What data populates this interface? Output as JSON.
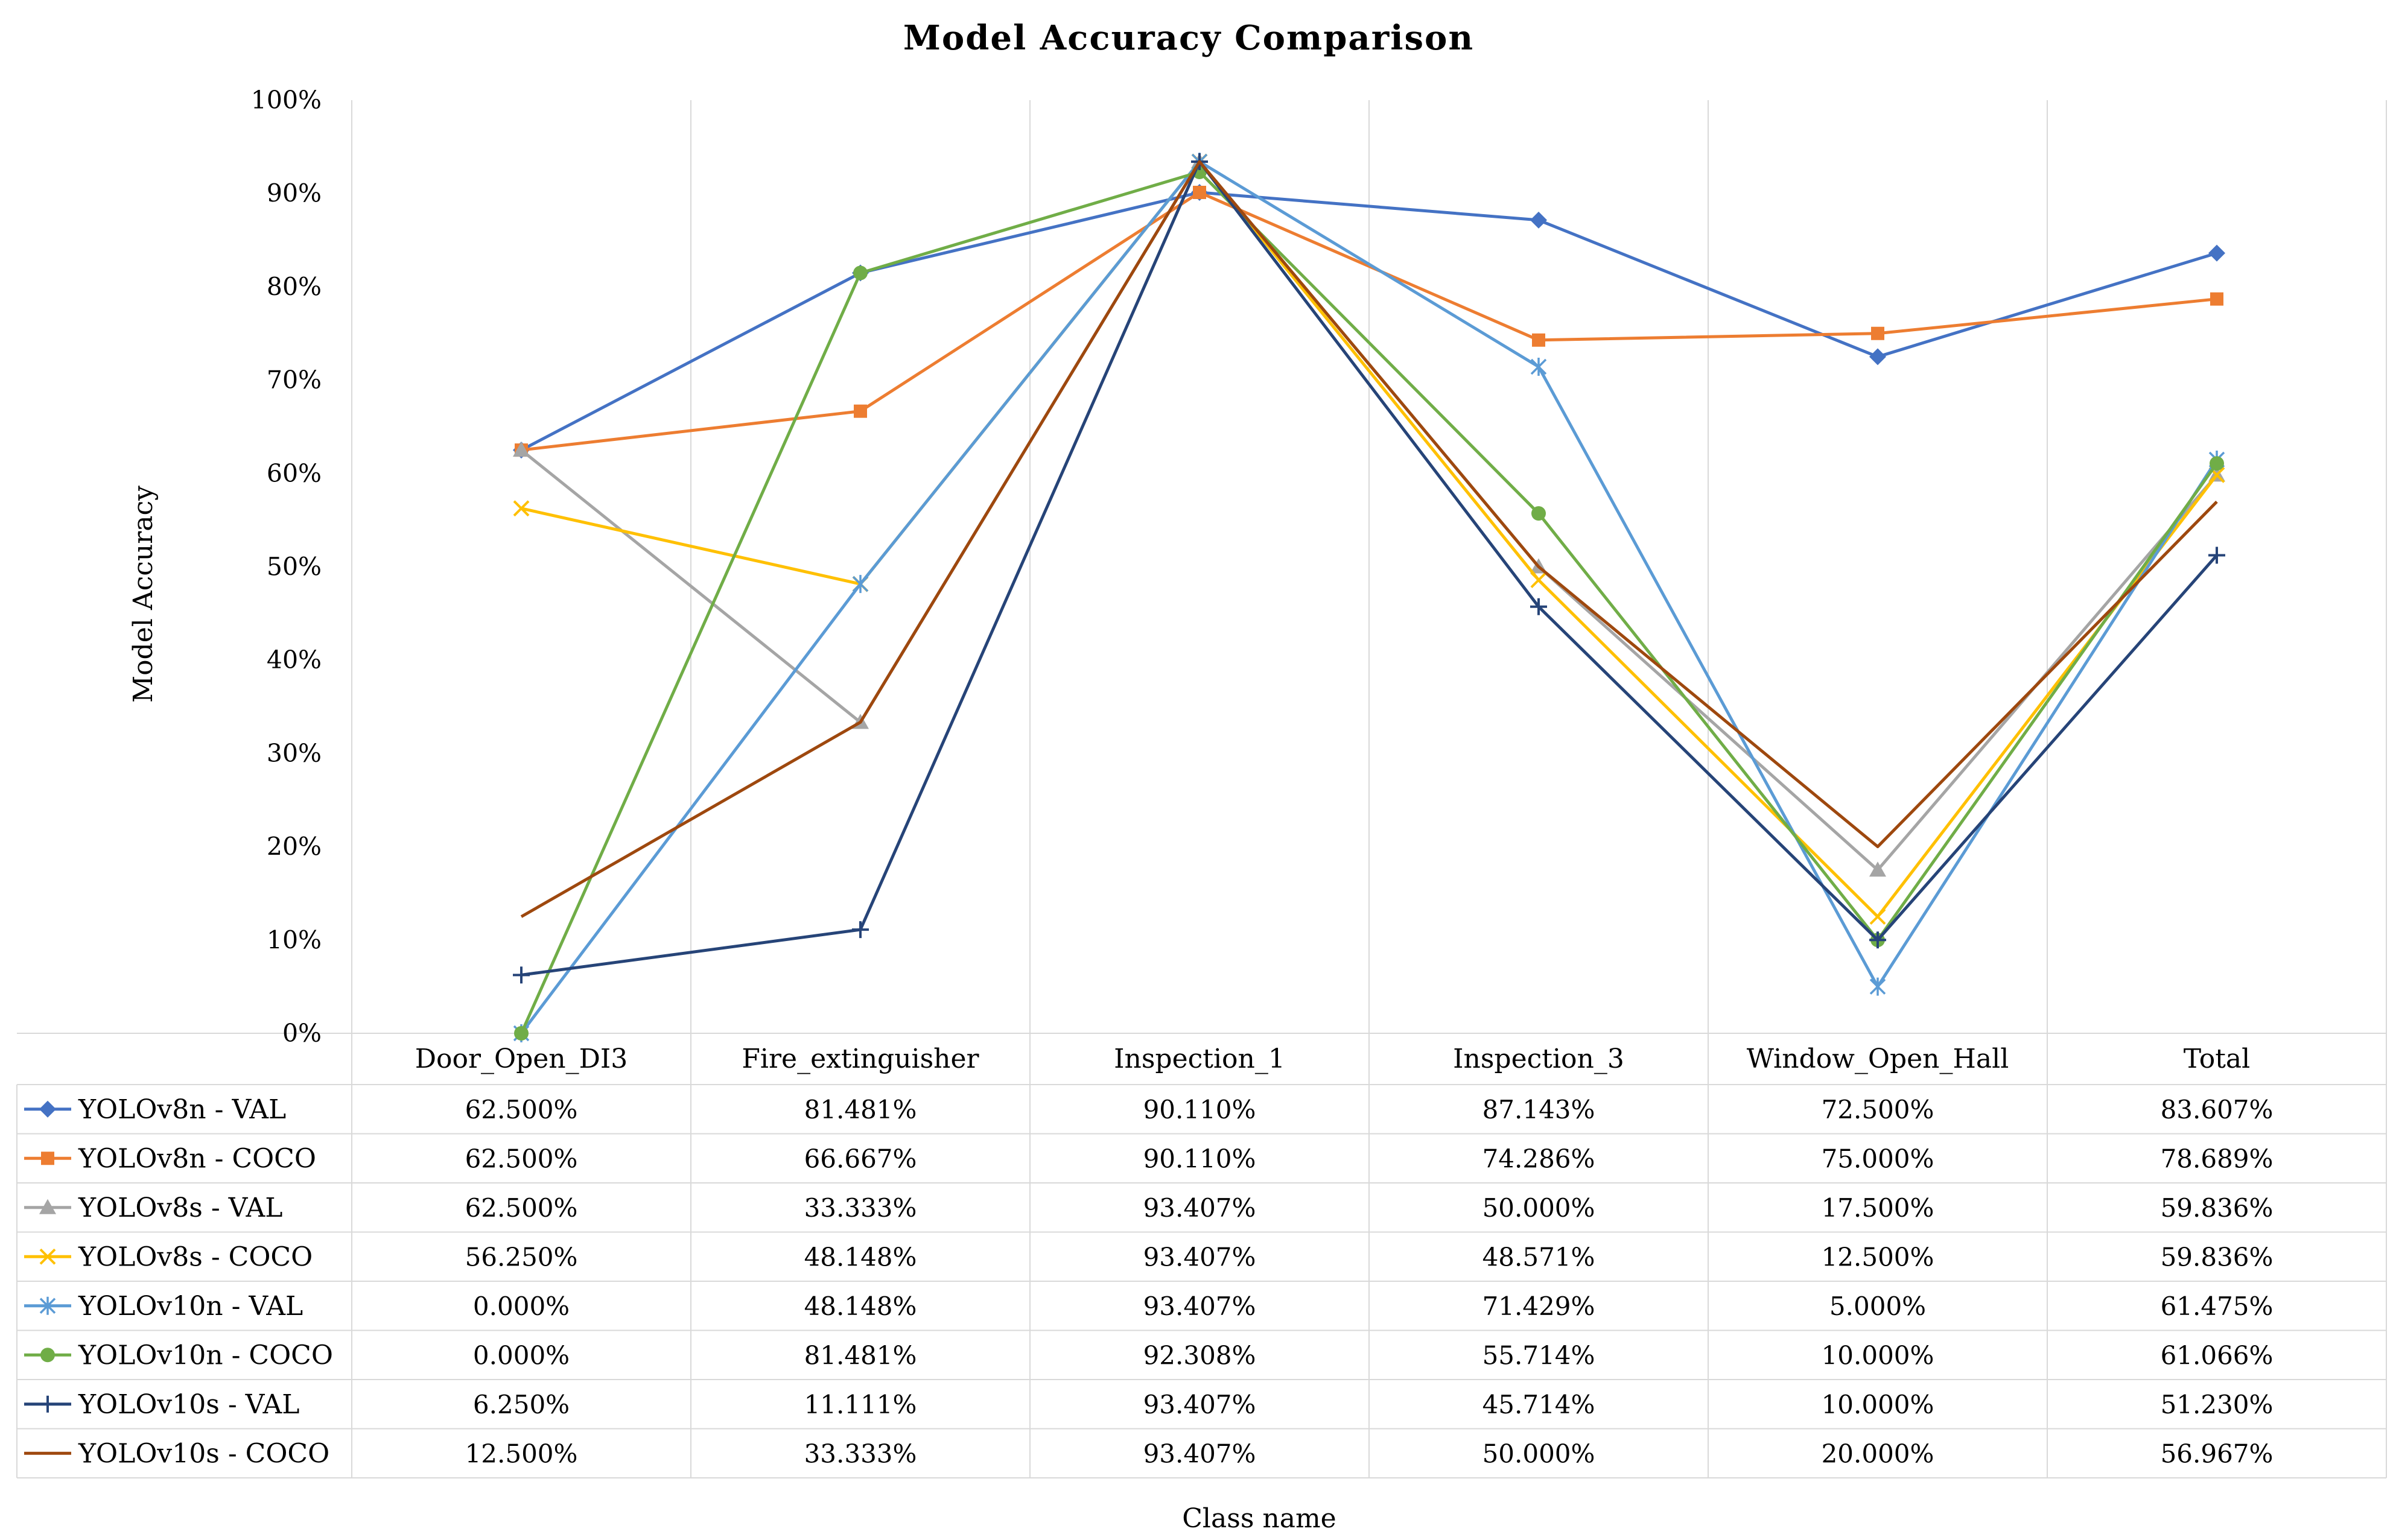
{
  "chart_data": {
    "type": "line",
    "title": "Model Accuracy Comparison",
    "xlabel": "Class name",
    "ylabel": "Model Accuracy",
    "ylim": [
      0,
      100
    ],
    "y_ticks": [
      "0%",
      "10%",
      "20%",
      "30%",
      "40%",
      "50%",
      "60%",
      "70%",
      "80%",
      "90%",
      "100%"
    ],
    "grid": "vertical",
    "legend": "data-table-below",
    "categories": [
      "Door_Open_DI3",
      "Fire_extinguisher",
      "Inspection_1",
      "Inspection_3",
      "Window_Open_Hall",
      "Total"
    ],
    "series": [
      {
        "name": "YOLOv8n - VAL",
        "color": "#4472C4",
        "marker": "diamond",
        "values": [
          62.5,
          81.481,
          90.11,
          87.143,
          72.5,
          83.607
        ],
        "labels": [
          "62.500%",
          "81.481%",
          "90.110%",
          "87.143%",
          "72.500%",
          "83.607%"
        ]
      },
      {
        "name": "YOLOv8n - COCO",
        "color": "#ED7D31",
        "marker": "square",
        "values": [
          62.5,
          66.667,
          90.11,
          74.286,
          75.0,
          78.689
        ],
        "labels": [
          "62.500%",
          "66.667%",
          "90.110%",
          "74.286%",
          "75.000%",
          "78.689%"
        ]
      },
      {
        "name": "YOLOv8s - VAL",
        "color": "#A5A5A5",
        "marker": "triangle",
        "values": [
          62.5,
          33.333,
          93.407,
          50.0,
          17.5,
          59.836
        ],
        "labels": [
          "62.500%",
          "33.333%",
          "93.407%",
          "50.000%",
          "17.500%",
          "59.836%"
        ]
      },
      {
        "name": "YOLOv8s - COCO",
        "color": "#FFC000",
        "marker": "x",
        "values": [
          56.25,
          48.148,
          93.407,
          48.571,
          12.5,
          59.836
        ],
        "labels": [
          "56.250%",
          "48.148%",
          "93.407%",
          "48.571%",
          "12.500%",
          "59.836%"
        ]
      },
      {
        "name": "YOLOv10n - VAL",
        "color": "#5B9BD5",
        "marker": "star",
        "values": [
          0.0,
          48.148,
          93.407,
          71.429,
          5.0,
          61.475
        ],
        "labels": [
          "0.000%",
          "48.148%",
          "93.407%",
          "71.429%",
          "5.000%",
          "61.475%"
        ]
      },
      {
        "name": "YOLOv10n - COCO",
        "color": "#70AD47",
        "marker": "circle",
        "values": [
          0.0,
          81.481,
          92.308,
          55.714,
          10.0,
          61.066
        ],
        "labels": [
          "0.000%",
          "81.481%",
          "92.308%",
          "55.714%",
          "10.000%",
          "61.066%"
        ]
      },
      {
        "name": "YOLOv10s - VAL",
        "color": "#264478",
        "marker": "plus",
        "values": [
          6.25,
          11.111,
          93.407,
          45.714,
          10.0,
          51.23
        ],
        "labels": [
          "6.250%",
          "11.111%",
          "93.407%",
          "45.714%",
          "10.000%",
          "51.230%"
        ]
      },
      {
        "name": "YOLOv10s - COCO",
        "color": "#9E480E",
        "marker": "none",
        "values": [
          12.5,
          33.333,
          93.407,
          50.0,
          20.0,
          56.967
        ],
        "labels": [
          "12.500%",
          "33.333%",
          "93.407%",
          "50.000%",
          "20.000%",
          "56.967%"
        ]
      }
    ]
  }
}
